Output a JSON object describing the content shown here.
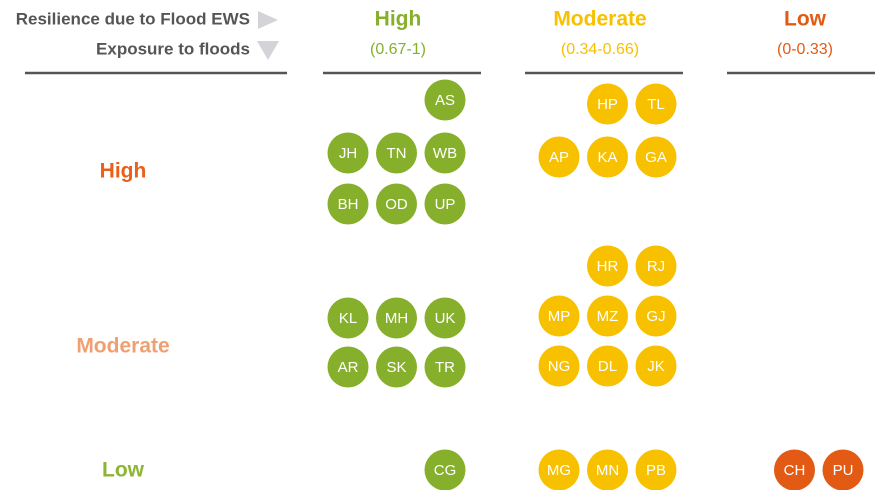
{
  "header": {
    "x_axis_label": "Resilience due to Flood EWS",
    "y_axis_label": "Exposure to floods"
  },
  "columns": [
    {
      "title": "High",
      "range": "(0.67-1)",
      "color": "#86b02c"
    },
    {
      "title": "Moderate",
      "range": "(0.34-0.66)",
      "color": "#f7c100"
    },
    {
      "title": "Low",
      "range": "(0-0.33)",
      "color": "#e35a14"
    }
  ],
  "rows": [
    {
      "label": "High",
      "color": "#e8601c",
      "cells": [
        [
          [
            "AS"
          ],
          [
            "JH",
            "TN",
            "WB"
          ],
          [
            "BH",
            "OD",
            "UP"
          ]
        ],
        [
          [
            "HP",
            "TL"
          ],
          [
            "AP",
            "KA",
            "GA"
          ]
        ],
        []
      ]
    },
    {
      "label": "Moderate",
      "color": "#f0a070",
      "cells": [
        [
          [
            "KL",
            "MH",
            "UK"
          ],
          [
            "AR",
            "SK",
            "TR"
          ]
        ],
        [
          [
            "HR",
            "RJ"
          ],
          [
            "MP",
            "MZ",
            "GJ"
          ],
          [
            "NG",
            "DL",
            "JK"
          ]
        ],
        []
      ]
    },
    {
      "label": "Low",
      "color": "#8cb534",
      "cells": [
        [
          [
            "CG"
          ]
        ],
        [
          [
            "MG",
            "MN",
            "PB"
          ]
        ],
        [
          [
            "CH",
            "PU"
          ]
        ]
      ]
    }
  ]
}
